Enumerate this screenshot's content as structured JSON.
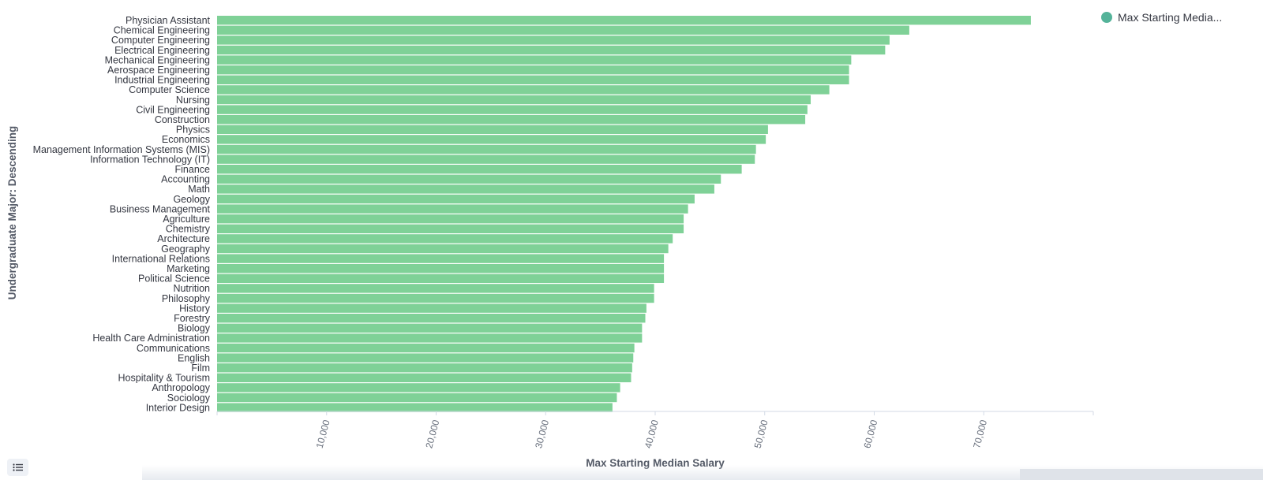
{
  "legend": {
    "label": "Max Starting Media...",
    "color": "#54b399"
  },
  "icons": {
    "menu": "list-icon"
  },
  "chart_data": {
    "type": "bar",
    "orientation": "horizontal",
    "xlabel": "Max Starting Median Salary",
    "ylabel": "Undergraduate Major: Descending",
    "xlim": [
      0,
      80000
    ],
    "x_ticks": [
      "10,000",
      "20,000",
      "30,000",
      "40,000",
      "50,000",
      "60,000",
      "70,000"
    ],
    "bar_color": "#7fd197",
    "categories": [
      "Physician Assistant",
      "Chemical Engineering",
      "Computer Engineering",
      "Electrical Engineering",
      "Mechanical Engineering",
      "Aerospace Engineering",
      "Industrial Engineering",
      "Computer Science",
      "Nursing",
      "Civil Engineering",
      "Construction",
      "Physics",
      "Economics",
      "Management Information Systems (MIS)",
      "Information Technology (IT)",
      "Finance",
      "Accounting",
      "Math",
      "Geology",
      "Business Management",
      "Agriculture",
      "Chemistry",
      "Architecture",
      "Geography",
      "International Relations",
      "Marketing",
      "Political Science",
      "Nutrition",
      "Philosophy",
      "History",
      "Forestry",
      "Biology",
      "Health Care Administration",
      "Communications",
      "English",
      "Film",
      "Hospitality & Tourism",
      "Anthropology",
      "Sociology",
      "Interior Design"
    ],
    "series": [
      {
        "name": "Max Starting Media...",
        "values": [
          74300,
          63200,
          61400,
          61000,
          57900,
          57700,
          57700,
          55900,
          54200,
          53900,
          53700,
          50300,
          50100,
          49200,
          49100,
          47900,
          46000,
          45400,
          43600,
          43000,
          42600,
          42600,
          41600,
          41200,
          40800,
          40800,
          40800,
          39900,
          39900,
          39200,
          39100,
          38800,
          38800,
          38100,
          38000,
          37900,
          37800,
          36800,
          36500,
          36100
        ]
      }
    ]
  }
}
